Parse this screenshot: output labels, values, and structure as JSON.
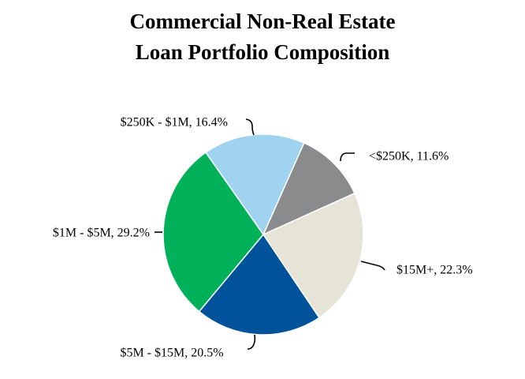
{
  "chart_data": {
    "type": "pie",
    "title": [
      "Commercial Non-Real Estate",
      "Loan Portfolio Composition"
    ],
    "values": [
      11.6,
      22.3,
      20.5,
      29.2,
      16.4
    ],
    "value_labels": [
      "<$250K, 11.6%",
      "$15M+, 22.3%",
      "$5M - $15M, 20.5%",
      "$1M - $5M, 29.2%",
      "$250K - $1M, 16.4%"
    ],
    "colors": [
      "#8a8b8d",
      "#e5e4d6",
      "#00529b",
      "#00b15a",
      "#9fd3f0"
    ]
  }
}
